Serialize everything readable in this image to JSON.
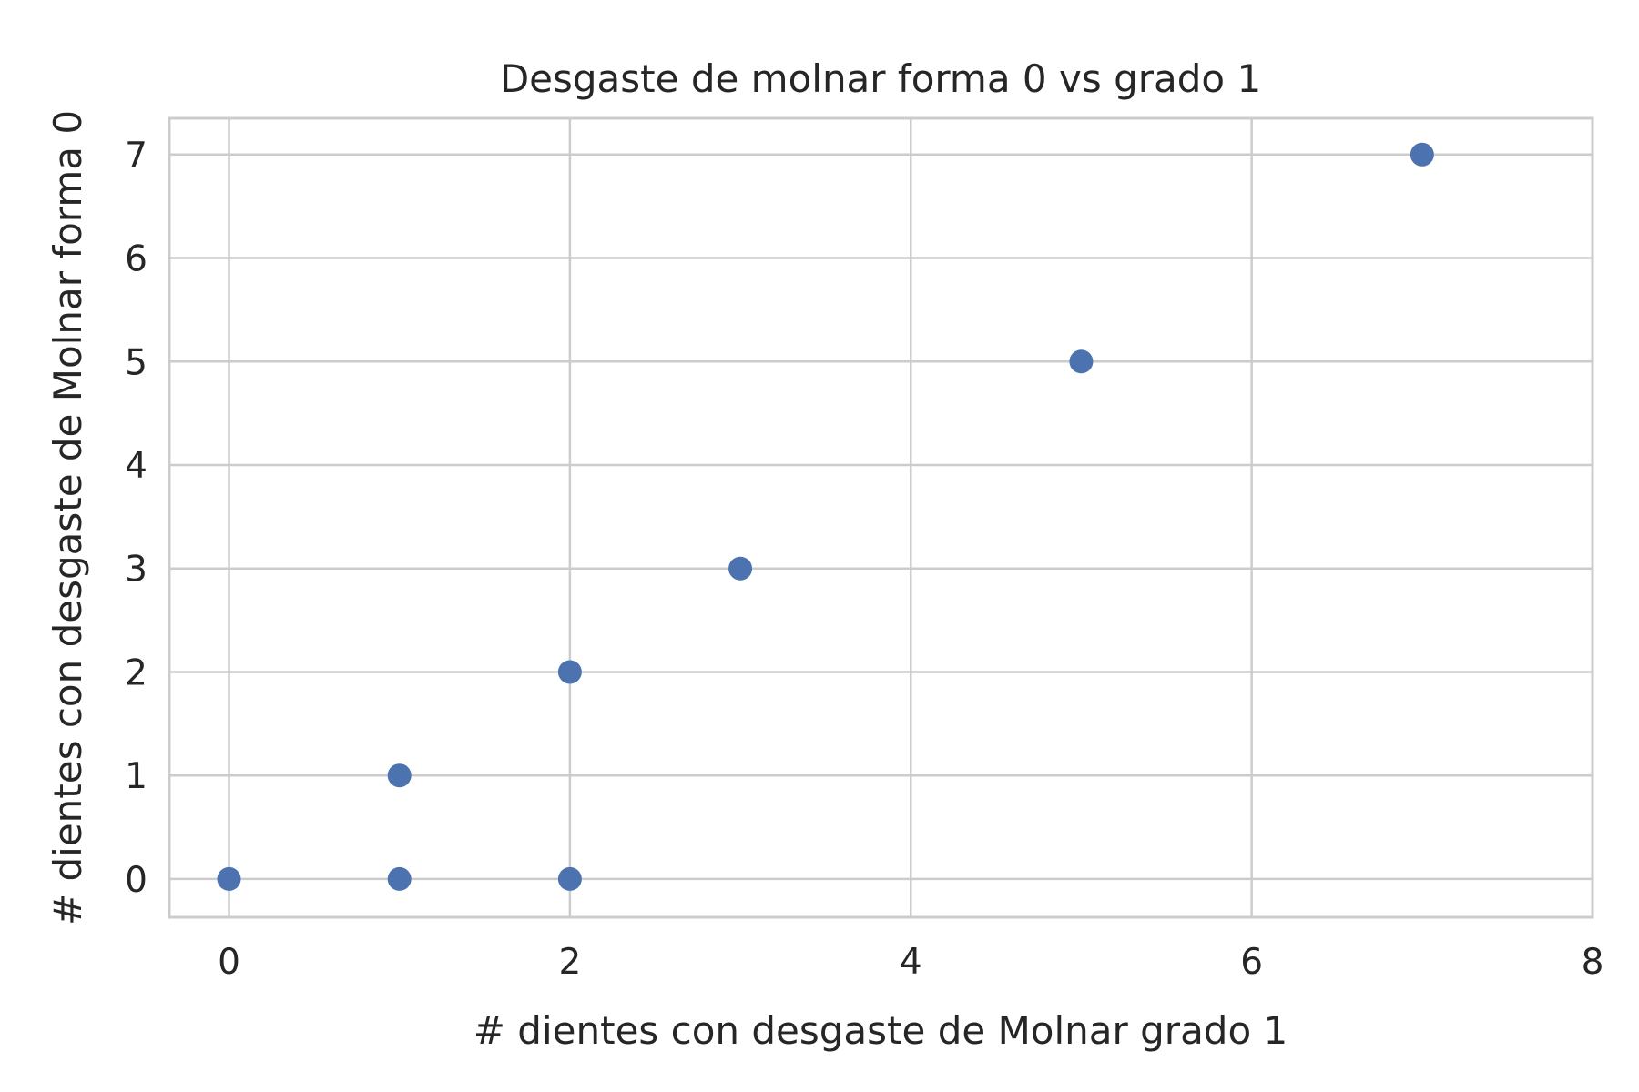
{
  "chart_data": {
    "type": "scatter",
    "title": "Desgaste de molnar forma 0 vs grado 1",
    "xlabel": "# dientes con desgaste de Molnar grado 1",
    "ylabel": "# dientes con desgaste de Molnar forma 0",
    "xlim": [
      -0.35,
      8
    ],
    "ylim": [
      -0.37,
      7.35
    ],
    "x_ticks": [
      0,
      2,
      4,
      6,
      8
    ],
    "y_ticks": [
      0,
      1,
      2,
      3,
      4,
      5,
      6,
      7
    ],
    "grid": true,
    "marker_color": "#4c72b0",
    "series": [
      {
        "points": [
          {
            "x": 0,
            "y": 0
          },
          {
            "x": 1,
            "y": 0
          },
          {
            "x": 2,
            "y": 0
          },
          {
            "x": 1,
            "y": 1
          },
          {
            "x": 2,
            "y": 2
          },
          {
            "x": 3,
            "y": 3
          },
          {
            "x": 5,
            "y": 5
          },
          {
            "x": 7,
            "y": 7
          }
        ]
      }
    ]
  }
}
